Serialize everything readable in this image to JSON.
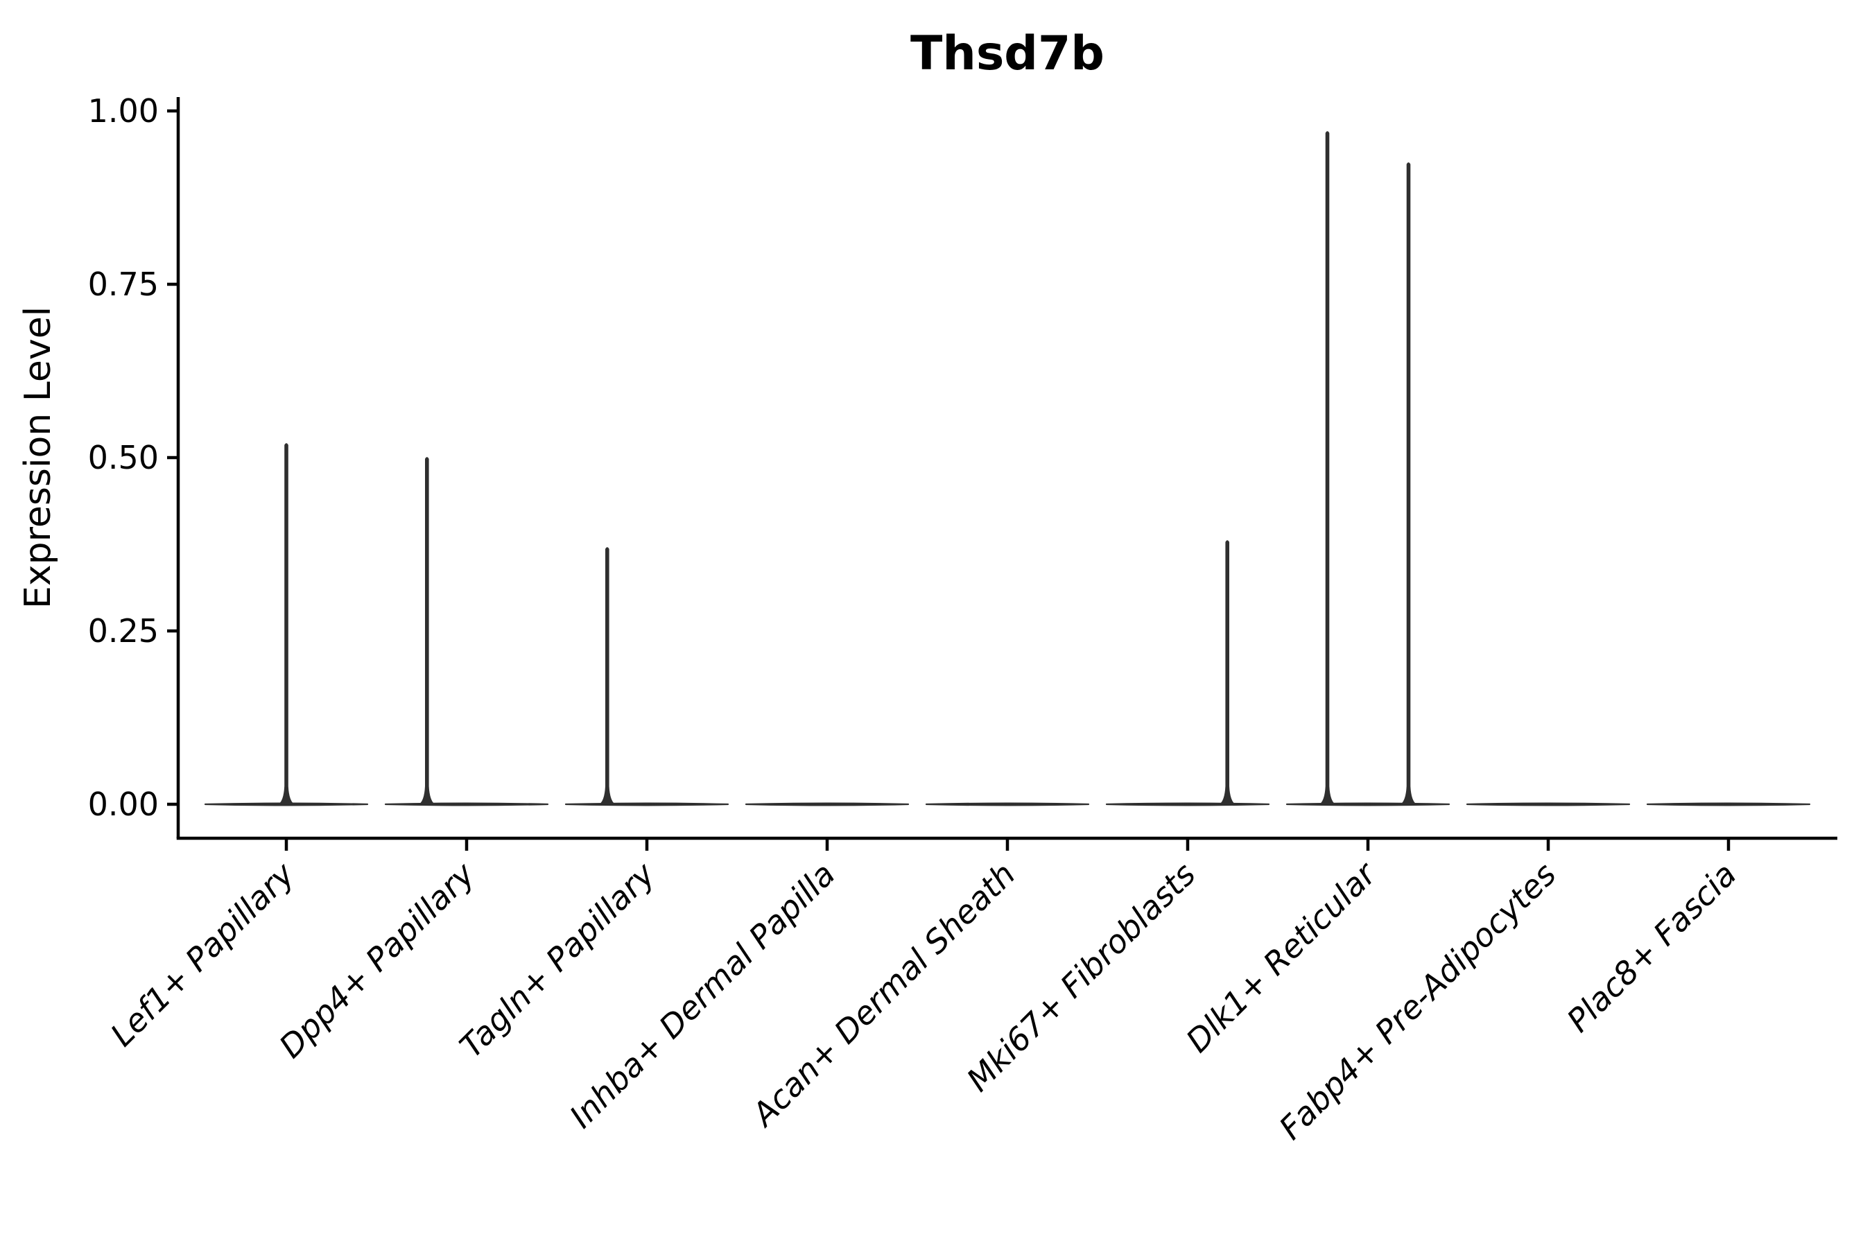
{
  "chart_data": {
    "type": "violin",
    "title": "Thsd7b",
    "xlabel": "",
    "ylabel": "Expression Level",
    "ylim": [
      0,
      1.05
    ],
    "grid": false,
    "legend": null,
    "yticks": [
      {
        "value": 0.0,
        "label": "0.00"
      },
      {
        "value": 0.25,
        "label": "0.25"
      },
      {
        "value": 0.5,
        "label": "0.50"
      },
      {
        "value": 0.75,
        "label": "0.75"
      },
      {
        "value": 1.0,
        "label": "1.00"
      }
    ],
    "categories": [
      "Lef1+ Papillary",
      "Dpp4+ Papillary",
      "Tagln+ Papillary",
      "Inhba+ Dermal Papilla",
      "Acan+ Dermal Sheath",
      "Mki67+ Fibroblasts",
      "Dlk1+ Reticular",
      "Fabp4+ Pre-Adipocytes",
      "Plac8+ Fascia"
    ],
    "violins": [
      {
        "category": "Lef1+ Papillary",
        "baseline_value": 0,
        "max_expression": 0.52,
        "spikes": [
          {
            "offset_frac": 0.0,
            "value": 0.52
          }
        ]
      },
      {
        "category": "Dpp4+ Papillary",
        "baseline_value": 0,
        "max_expression": 0.5,
        "spikes": [
          {
            "offset_frac": -0.22,
            "value": 0.5
          }
        ]
      },
      {
        "category": "Tagln+ Papillary",
        "baseline_value": 0,
        "max_expression": 0.37,
        "spikes": [
          {
            "offset_frac": -0.22,
            "value": 0.37
          }
        ]
      },
      {
        "category": "Inhba+ Dermal Papilla",
        "baseline_value": 0,
        "max_expression": 0.0,
        "spikes": []
      },
      {
        "category": "Acan+ Dermal Sheath",
        "baseline_value": 0,
        "max_expression": 0.0,
        "spikes": []
      },
      {
        "category": "Mki67+ Fibroblasts",
        "baseline_value": 0,
        "max_expression": 0.38,
        "spikes": [
          {
            "offset_frac": 0.22,
            "value": 0.38
          }
        ]
      },
      {
        "category": "Dlk1+ Reticular",
        "baseline_value": 0,
        "max_expression": 0.97,
        "spikes": [
          {
            "offset_frac": -0.225,
            "value": 0.97
          },
          {
            "offset_frac": 0.225,
            "value": 0.925
          }
        ]
      },
      {
        "category": "Fabp4+ Pre-Adipocytes",
        "baseline_value": 0,
        "max_expression": 0.0,
        "spikes": []
      },
      {
        "category": "Plac8+ Fascia",
        "baseline_value": 0,
        "max_expression": 0.0,
        "spikes": []
      }
    ],
    "colors": {
      "violin": "#2f2f2f",
      "axis": "#000000",
      "title": "#000000",
      "tick_labels": "#000000"
    }
  }
}
